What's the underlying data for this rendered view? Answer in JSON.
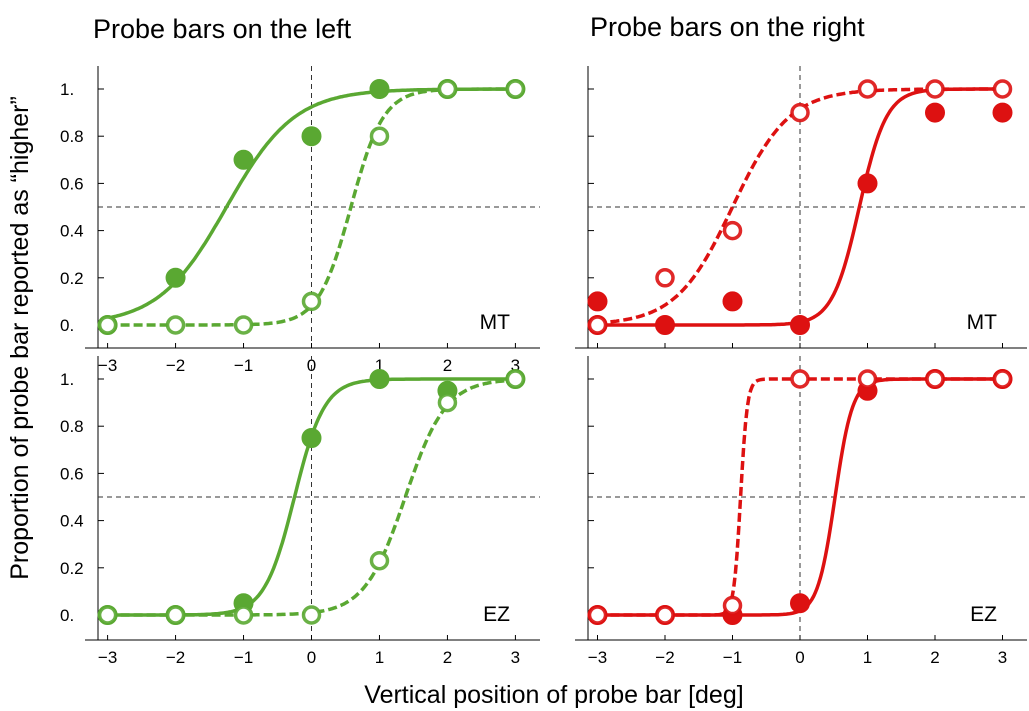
{
  "figure": {
    "column_titles": [
      "Probe bars on the left",
      "Probe bars on the right"
    ],
    "xlabel": "Vertical position of probe bar [deg]",
    "ylabel": "Proportion of probe bar reported as “higher”"
  },
  "colors": {
    "left": "#5aa832",
    "right": "#dd1111"
  },
  "chart_data": [
    {
      "type": "scatter",
      "panel": "top-left",
      "subject": "MT",
      "x_ticks": [
        "−3",
        "−2",
        "−1",
        "0",
        "1",
        "2",
        "3"
      ],
      "y_ticks": [
        "0.",
        "0.2",
        "0.4",
        "0.6",
        "0.8",
        "1."
      ],
      "xlim": [
        -3.2,
        3.2
      ],
      "ylim": [
        -0.03,
        1.1
      ],
      "series": [
        {
          "style": "filled",
          "x": [
            -3,
            -2,
            -1,
            0,
            1,
            2,
            3
          ],
          "y": [
            0.0,
            0.2,
            0.7,
            0.8,
            1.0,
            1.0,
            1.0
          ],
          "fit_mu": -1.25,
          "fit_s": 0.5
        },
        {
          "style": "open",
          "x": [
            -3,
            -2,
            -1,
            0,
            1,
            2,
            3
          ],
          "y": [
            0.0,
            0.0,
            0.0,
            0.1,
            0.8,
            1.0,
            1.0
          ],
          "fit_mu": 0.58,
          "fit_s": 0.24
        }
      ]
    },
    {
      "type": "scatter",
      "panel": "top-right",
      "subject": "MT",
      "x_ticks": [],
      "y_ticks": [],
      "xlim": [
        -3.2,
        3.2
      ],
      "ylim": [
        -0.03,
        1.1
      ],
      "series": [
        {
          "style": "filled",
          "x": [
            -3,
            -3,
            -2,
            -1,
            0,
            1,
            2,
            3
          ],
          "y": [
            0.1,
            0.0,
            0.0,
            0.1,
            0.0,
            0.6,
            0.9,
            0.9
          ],
          "fit_mu": 0.88,
          "fit_s": 0.2
        },
        {
          "style": "open",
          "x": [
            -3,
            -2,
            -1,
            0,
            1,
            2,
            3
          ],
          "y": [
            0.0,
            0.2,
            0.4,
            0.9,
            1.0,
            1.0,
            1.0
          ],
          "fit_mu": -1.0,
          "fit_s": 0.42
        }
      ]
    },
    {
      "type": "scatter",
      "panel": "bottom-left",
      "subject": "EZ",
      "x_ticks": [
        "−3",
        "−2",
        "−1",
        "0",
        "1",
        "2",
        "3"
      ],
      "y_ticks": [
        "0.",
        "0.2",
        "0.4",
        "0.6",
        "0.8",
        "1."
      ],
      "xlim": [
        -3.2,
        3.2
      ],
      "ylim": [
        -0.03,
        1.1
      ],
      "series": [
        {
          "style": "filled",
          "x": [
            -3,
            -2,
            -1,
            0,
            1,
            2,
            3
          ],
          "y": [
            0.0,
            0.0,
            0.05,
            0.75,
            1.0,
            0.95,
            1.0
          ],
          "fit_mu": -0.25,
          "fit_s": 0.22
        },
        {
          "style": "open",
          "x": [
            -3,
            -2,
            -1,
            0,
            1,
            2,
            3
          ],
          "y": [
            0.0,
            0.0,
            0.0,
            0.0,
            0.23,
            0.9,
            1.0
          ],
          "fit_mu": 1.38,
          "fit_s": 0.3
        }
      ]
    },
    {
      "type": "scatter",
      "panel": "bottom-right",
      "subject": "EZ",
      "x_ticks": [
        "−3",
        "−2",
        "−1",
        "0",
        "1",
        "2",
        "3"
      ],
      "y_ticks": [],
      "xlim": [
        -3.2,
        3.2
      ],
      "ylim": [
        -0.03,
        1.1
      ],
      "series": [
        {
          "style": "filled",
          "x": [
            -3,
            -2,
            -1,
            0,
            1,
            2,
            3
          ],
          "y": [
            0.0,
            0.0,
            0.0,
            0.05,
            0.95,
            1.0,
            1.0
          ],
          "fit_mu": 0.52,
          "fit_s": 0.13
        },
        {
          "style": "open",
          "x": [
            -3,
            -2,
            -1,
            0,
            1,
            2,
            3
          ],
          "y": [
            0.0,
            0.0,
            0.04,
            1.0,
            1.0,
            1.0,
            1.0
          ],
          "fit_mu": -0.88,
          "fit_s": 0.05
        }
      ]
    }
  ]
}
